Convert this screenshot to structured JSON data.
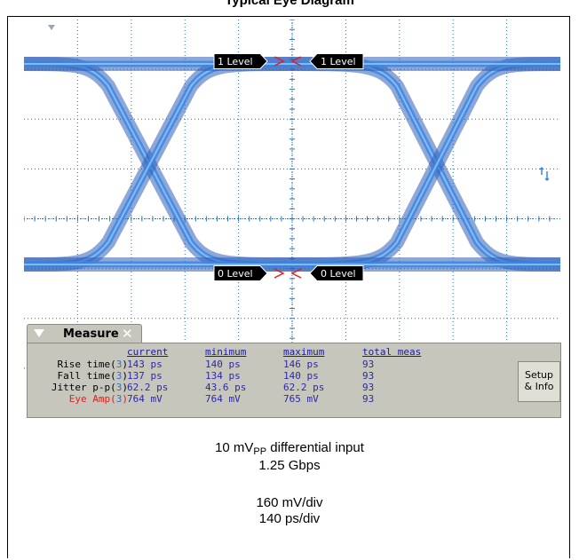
{
  "title": "Typical Eye Diagram",
  "scope": {
    "level_labels": {
      "one_left": "1 Level",
      "one_right": "1 Level",
      "zero_left": "0 Level",
      "zero_right": "0 Level"
    },
    "colors": {
      "trace": "#2f5fb8",
      "grid": "#2c6fae",
      "background": "#ffffff"
    }
  },
  "measure": {
    "tab_label": "Measure",
    "headers": [
      "current",
      "minimum",
      "maximum",
      "total meas"
    ],
    "rows": [
      {
        "label": "Rise time(",
        "ch": "3",
        "close": ")",
        "values": [
          "143 ps",
          "140 ps",
          "146 ps",
          "93"
        ],
        "highlight": false
      },
      {
        "label": "Fall time(",
        "ch": "3",
        "close": ")",
        "values": [
          "137 ps",
          "134 ps",
          "140 ps",
          "93"
        ],
        "highlight": false
      },
      {
        "label": "Jitter p-p(",
        "ch": "3",
        "close": ")",
        "values": [
          "62.2 ps",
          "43.6 ps",
          "62.2 ps",
          "93"
        ],
        "highlight": false
      },
      {
        "label": "Eye Amp(",
        "ch": "3",
        "close": ")",
        "values": [
          "764 mV",
          "764 mV",
          "765 mV",
          "93"
        ],
        "highlight": true
      }
    ],
    "setup_button": {
      "line1": "Setup",
      "line2": "& Info"
    }
  },
  "caption": {
    "input_prefix": "10 mV",
    "input_sub": "PP",
    "input_suffix": " differential input",
    "rate": "1.25 Gbps",
    "vdiv": "160 mV/div",
    "tdiv": "140 ps/div"
  }
}
